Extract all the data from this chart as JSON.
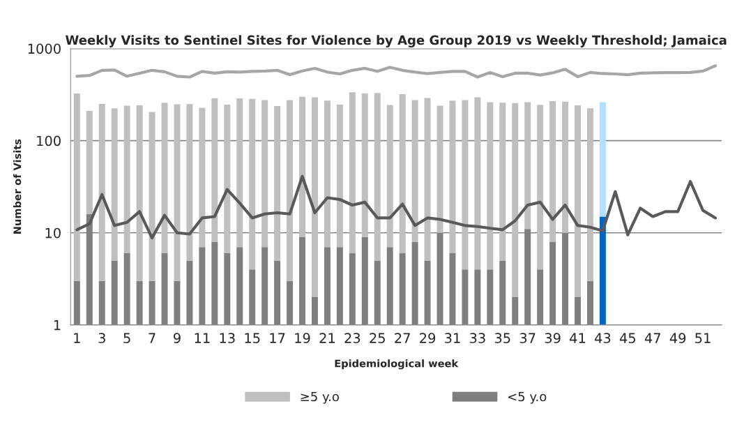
{
  "chart_data": {
    "type": "bar",
    "title": "Weekly Visits to Sentinel Sites for Violence by Age Group 2019 vs Weekly Threshold; Jamaica",
    "xlabel": "Epidemiological week",
    "ylabel": "Number of Visits",
    "categories": [
      "1",
      null,
      "3",
      null,
      "5",
      null,
      "7",
      null,
      "9",
      null,
      "11",
      null,
      "13",
      null,
      "15",
      null,
      "17",
      null,
      "19",
      null,
      "21",
      null,
      "23",
      null,
      "25",
      null,
      "27",
      null,
      "29",
      null,
      "31",
      null,
      "33",
      null,
      "35",
      null,
      "37",
      null,
      "39",
      null,
      "41",
      null,
      "43",
      null,
      "45",
      null,
      "47",
      null,
      "49",
      null,
      "51",
      null
    ],
    "stacked": true,
    "log": true,
    "ylim": [
      1,
      1000
    ],
    "yticks": [
      1,
      10,
      100,
      1000
    ],
    "grid": "y",
    "legend": "bottom",
    "series": [
      {
        "name": "<5 y.o",
        "color": "#7f7f7f",
        "colors": [
          "#7f7f7f",
          "#7f7f7f",
          "#7f7f7f",
          "#7f7f7f",
          "#7f7f7f",
          "#7f7f7f",
          "#7f7f7f",
          "#7f7f7f",
          "#7f7f7f",
          "#7f7f7f",
          "#7f7f7f",
          "#7f7f7f",
          "#7f7f7f",
          "#7f7f7f",
          "#7f7f7f",
          "#7f7f7f",
          "#7f7f7f",
          "#7f7f7f",
          "#7f7f7f",
          "#7f7f7f",
          "#7f7f7f",
          "#7f7f7f",
          "#7f7f7f",
          "#7f7f7f",
          "#7f7f7f",
          "#7f7f7f",
          "#7f7f7f",
          "#7f7f7f",
          "#7f7f7f",
          "#7f7f7f",
          "#7f7f7f",
          "#7f7f7f",
          "#7f7f7f",
          "#7f7f7f",
          "#7f7f7f",
          "#7f7f7f",
          "#7f7f7f",
          "#7f7f7f",
          "#7f7f7f",
          "#7f7f7f",
          "#7f7f7f",
          "#7f7f7f",
          "#0563c1",
          null,
          null,
          null,
          null,
          null,
          null,
          null,
          null,
          null
        ],
        "values": [
          3,
          16,
          3,
          5,
          6,
          3,
          3,
          6,
          3,
          5,
          7,
          8,
          6,
          7,
          4,
          7,
          5,
          3,
          9,
          2,
          7,
          7,
          6,
          9,
          5,
          7,
          6,
          8,
          5,
          10,
          6,
          4,
          4,
          4,
          5,
          2,
          11,
          4,
          8,
          10,
          2,
          3,
          15,
          null,
          null,
          null,
          null,
          null,
          null,
          null,
          null,
          null
        ]
      },
      {
        "name": "≥5 y.o",
        "color": "#bfbfbf",
        "colors": [
          "#bfbfbf",
          "#bfbfbf",
          "#bfbfbf",
          "#bfbfbf",
          "#bfbfbf",
          "#bfbfbf",
          "#bfbfbf",
          "#bfbfbf",
          "#bfbfbf",
          "#bfbfbf",
          "#bfbfbf",
          "#bfbfbf",
          "#bfbfbf",
          "#bfbfbf",
          "#bfbfbf",
          "#bfbfbf",
          "#bfbfbf",
          "#bfbfbf",
          "#bfbfbf",
          "#bfbfbf",
          "#bfbfbf",
          "#bfbfbf",
          "#bfbfbf",
          "#bfbfbf",
          "#bfbfbf",
          "#bfbfbf",
          "#bfbfbf",
          "#bfbfbf",
          "#bfbfbf",
          "#bfbfbf",
          "#bfbfbf",
          "#bfbfbf",
          "#bfbfbf",
          "#bfbfbf",
          "#bfbfbf",
          "#bfbfbf",
          "#bfbfbf",
          "#bfbfbf",
          "#bfbfbf",
          "#bfbfbf",
          "#bfbfbf",
          "#bfbfbf",
          "#b3e0ff",
          null,
          null,
          null,
          null,
          null,
          null,
          null,
          null,
          null
        ],
        "values": [
          322,
          194,
          247,
          220,
          234,
          239,
          202,
          252,
          245,
          245,
          221,
          280,
          240,
          281,
          280,
          269,
          233,
          273,
          291,
          293,
          265,
          239,
          329,
          316,
          325,
          237,
          314,
          268,
          285,
          230,
          266,
          272,
          292,
          258,
          253,
          254,
          251,
          241,
          260,
          255,
          240,
          222,
          247,
          null,
          null,
          null,
          null,
          null,
          null,
          null,
          null,
          null
        ]
      },
      {
        "type": "line",
        "color": "#a6a6a6",
        "values": [
          500,
          510,
          580,
          585,
          500,
          540,
          580,
          560,
          500,
          490,
          565,
          540,
          560,
          555,
          565,
          570,
          580,
          520,
          570,
          610,
          555,
          530,
          580,
          610,
          565,
          625,
          580,
          555,
          535,
          550,
          565,
          565,
          490,
          550,
          495,
          540,
          540,
          515,
          545,
          595,
          495,
          550,
          535,
          530,
          520,
          540,
          545,
          548,
          548,
          550,
          570,
          650
        ]
      },
      {
        "type": "line",
        "color": "#595959",
        "values": [
          10.8,
          12.5,
          26,
          12,
          13,
          17,
          8.8,
          15.5,
          10,
          9.7,
          14.5,
          15,
          29.5,
          21,
          14.5,
          16,
          16.5,
          16,
          41,
          16.5,
          24,
          23,
          20,
          21.5,
          14.5,
          14.5,
          20.5,
          12,
          14.5,
          14,
          13,
          12,
          11.7,
          11.2,
          10.8,
          13.5,
          20,
          21.5,
          14,
          20,
          12,
          11.5,
          10.5,
          28,
          9.5,
          18.5,
          15,
          17,
          17,
          36,
          17.5,
          14.5
        ]
      }
    ]
  }
}
